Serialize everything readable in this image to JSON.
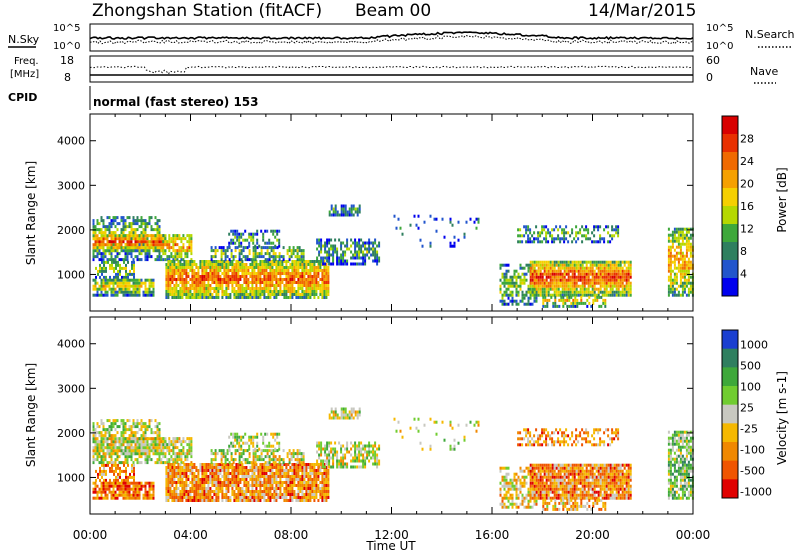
{
  "header": {
    "station": "Zhongshan Station (fitACF)",
    "beam": "Beam 00",
    "date": "14/Mar/2015"
  },
  "top_panel": {
    "nsky_label": "N.Sky",
    "nsearch_label": "N.Search",
    "nsky_ticks": [
      "10^5",
      "10^0"
    ],
    "nsearch_ticks": [
      "10^5",
      "10^0"
    ],
    "freq_label_1": "Freq.",
    "freq_label_2": "[MHz]",
    "freq_ticks": [
      "18",
      "8"
    ],
    "nave_label": "Nave",
    "nave_ticks": [
      "60",
      "0"
    ],
    "cpid_label": "CPID",
    "cpid_text": "normal (fast stereo) 153"
  },
  "chart_data": [
    {
      "type": "heatmap",
      "name": "power",
      "ylabel": "Slant Range [km]",
      "xlabel": "Time UT",
      "x_ticks": [
        "00:00",
        "04:00",
        "08:00",
        "12:00",
        "16:00",
        "20:00",
        "00:00"
      ],
      "y_ticks": [
        1000,
        2000,
        3000,
        4000
      ],
      "ylim": [
        180,
        4600
      ],
      "xlim_hours": [
        0,
        24
      ],
      "colorbar": {
        "label": "Power [dB]",
        "ticks": [
          "4",
          "8",
          "12",
          "16",
          "20",
          "24",
          "28"
        ],
        "colors": [
          "#0000ee",
          "#2255cc",
          "#2f7f5f",
          "#3ea83a",
          "#b5d800",
          "#f5d000",
          "#f5a000",
          "#f06a00",
          "#e83000",
          "#d80000"
        ]
      }
    },
    {
      "type": "heatmap",
      "name": "velocity",
      "ylabel": "Slant Range [km]",
      "xlabel": "Time UT",
      "x_ticks": [
        "00:00",
        "04:00",
        "08:00",
        "12:00",
        "16:00",
        "20:00",
        "00:00"
      ],
      "y_ticks": [
        1000,
        2000,
        3000,
        4000
      ],
      "ylim": [
        180,
        4600
      ],
      "xlim_hours": [
        0,
        24
      ],
      "colorbar": {
        "label": "Velocity [m s-1]",
        "ticks": [
          "1000",
          "500",
          "100",
          "25",
          "-25",
          "-100",
          "-500",
          "-1000"
        ],
        "colors": [
          "#1a3fd0",
          "#2f7f5f",
          "#3ea83a",
          "#70cc30",
          "#c8c8c0",
          "#f5b800",
          "#f08800",
          "#f05500",
          "#e00000"
        ]
      }
    }
  ],
  "xaxis_title": "Time UT"
}
